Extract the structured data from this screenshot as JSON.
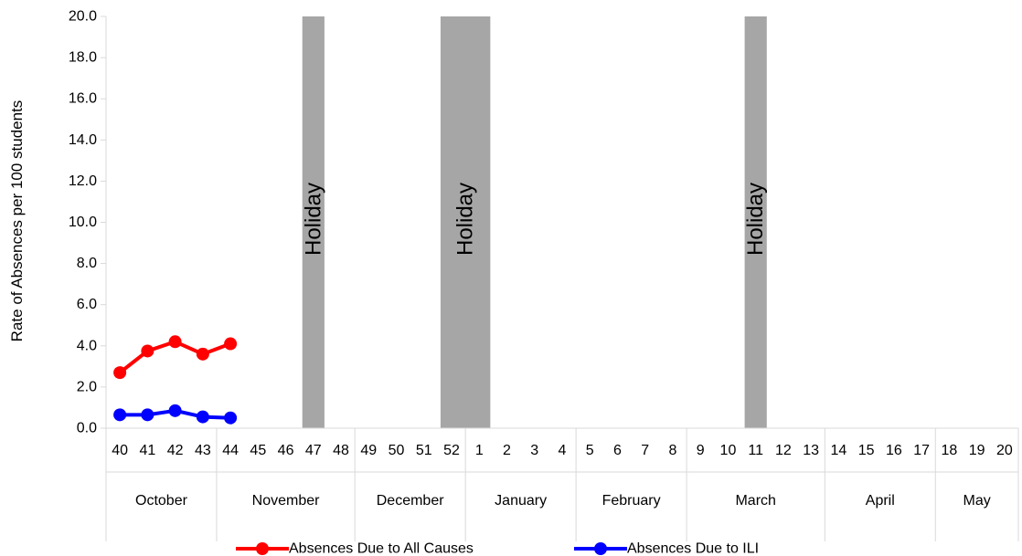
{
  "chart_data": {
    "type": "line",
    "title": "",
    "xlabel": "",
    "ylabel": "Rate of Absences per 100 students",
    "ylim": [
      0,
      20
    ],
    "y_ticks": [
      "0.0",
      "2.0",
      "4.0",
      "6.0",
      "8.0",
      "10.0",
      "12.0",
      "14.0",
      "16.0",
      "18.0",
      "20.0"
    ],
    "weeks": [
      "40",
      "41",
      "42",
      "43",
      "44",
      "45",
      "46",
      "47",
      "48",
      "49",
      "50",
      "51",
      "52",
      "1",
      "2",
      "3",
      "4",
      "5",
      "6",
      "7",
      "8",
      "9",
      "10",
      "11",
      "12",
      "13",
      "14",
      "15",
      "16",
      "17",
      "18",
      "19",
      "20"
    ],
    "months": [
      {
        "name": "October",
        "weeks": 4
      },
      {
        "name": "November",
        "weeks": 5
      },
      {
        "name": "December",
        "weeks": 4
      },
      {
        "name": "January",
        "weeks": 4
      },
      {
        "name": "February",
        "weeks": 4
      },
      {
        "name": "March",
        "weeks": 5
      },
      {
        "name": "April",
        "weeks": 4
      },
      {
        "name": "May",
        "weeks": 3
      }
    ],
    "holidays": [
      {
        "label": "Holiday",
        "weeks": [
          "47"
        ]
      },
      {
        "label": "Holiday",
        "weeks": [
          "52",
          "1"
        ]
      },
      {
        "label": "Holiday",
        "weeks": [
          "11"
        ]
      }
    ],
    "series": [
      {
        "name": "Absences Due to All Causes",
        "color": "#ff0000",
        "weeks": [
          "40",
          "41",
          "42",
          "43",
          "44"
        ],
        "values": [
          2.7,
          3.75,
          4.2,
          3.6,
          4.1
        ]
      },
      {
        "name": "Absences Due to ILI",
        "color": "#0000ff",
        "weeks": [
          "40",
          "41",
          "42",
          "43",
          "44"
        ],
        "values": [
          0.65,
          0.65,
          0.85,
          0.55,
          0.5
        ]
      }
    ],
    "legend_position": "bottom",
    "grid": false,
    "holiday_color": "#a6a6a6",
    "axis_color": "#d9d9d9"
  }
}
